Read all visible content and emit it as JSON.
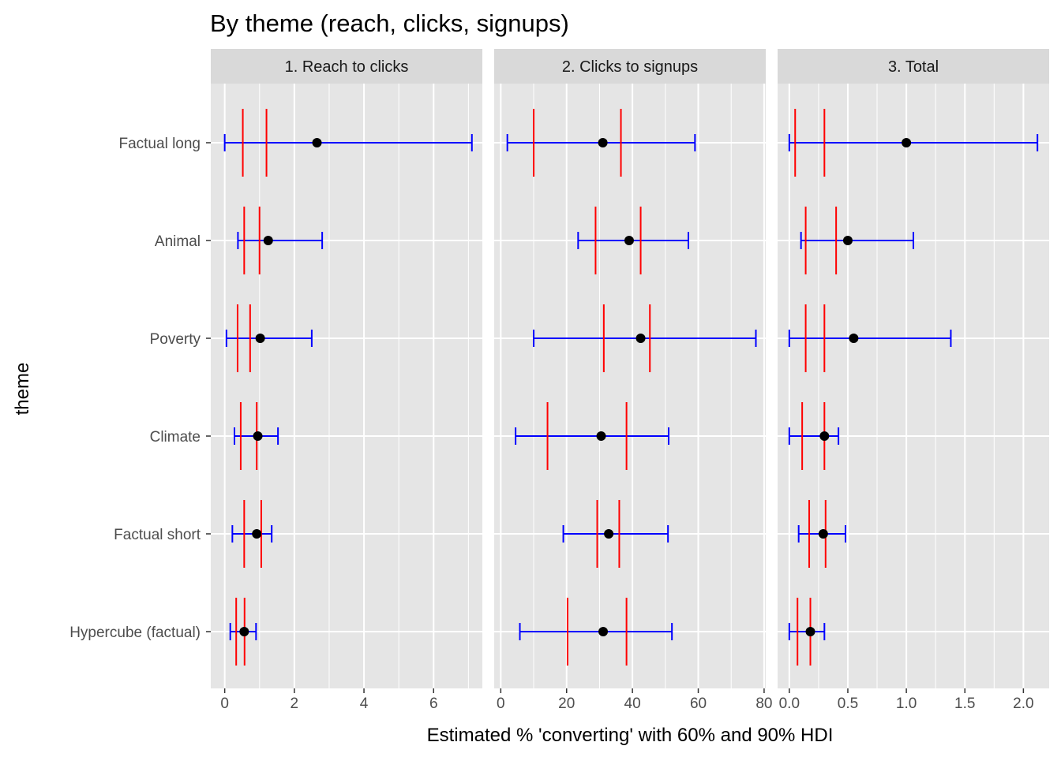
{
  "chart_data": {
    "type": "interval",
    "title": "By theme (reach, clicks, signups)",
    "xlabel": "Estimated % 'converting' with 60% and 90% HDI",
    "ylabel": "theme",
    "categories": [
      "Factual long",
      "Animal",
      "Poverty",
      "Climate",
      "Factual short",
      "Hypercube (factual)"
    ],
    "legend": "none",
    "grid": true,
    "colors": {
      "point": "#000000",
      "hdi_90": "#0000ff",
      "hdi_60": "#ff0000",
      "panel_bg": "#e5e5e5",
      "strip_bg": "#d9d9d9",
      "grid": "#ffffff"
    },
    "panels": [
      {
        "name": "1. Reach to clicks",
        "xlim": [
          -0.4,
          7.4
        ],
        "xticks": [
          0,
          2,
          4,
          6
        ],
        "xtick_labels": [
          "0",
          "2",
          "4",
          "6"
        ],
        "points": [
          {
            "theme": "Factual long",
            "estimate": 2.65,
            "hdi60": [
              0.52,
              1.2
            ],
            "hdi90": [
              0.0,
              7.1
            ]
          },
          {
            "theme": "Animal",
            "estimate": 1.25,
            "hdi60": [
              0.56,
              1.0
            ],
            "hdi90": [
              0.38,
              2.8
            ]
          },
          {
            "theme": "Poverty",
            "estimate": 1.02,
            "hdi60": [
              0.37,
              0.73
            ],
            "hdi90": [
              0.05,
              2.5
            ]
          },
          {
            "theme": "Climate",
            "estimate": 0.95,
            "hdi60": [
              0.46,
              0.92
            ],
            "hdi90": [
              0.28,
              1.53
            ]
          },
          {
            "theme": "Factual short",
            "estimate": 0.92,
            "hdi60": [
              0.56,
              1.05
            ],
            "hdi90": [
              0.22,
              1.35
            ]
          },
          {
            "theme": "Hypercube (factual)",
            "estimate": 0.56,
            "hdi60": [
              0.33,
              0.57
            ],
            "hdi90": [
              0.16,
              0.9
            ]
          }
        ]
      },
      {
        "name": "2. Clicks to signups",
        "xlim": [
          -2,
          80.5
        ],
        "xticks": [
          0,
          20,
          40,
          60,
          80
        ],
        "xtick_labels": [
          "0",
          "20",
          "40",
          "60",
          "80"
        ],
        "points": [
          {
            "theme": "Factual long",
            "estimate": 31,
            "hdi60": [
              10,
              36.5
            ],
            "hdi90": [
              2,
              59
            ]
          },
          {
            "theme": "Animal",
            "estimate": 39,
            "hdi60": [
              28.8,
              42.5
            ],
            "hdi90": [
              23.5,
              57
            ]
          },
          {
            "theme": "Poverty",
            "estimate": 42.5,
            "hdi60": [
              31.3,
              45.3
            ],
            "hdi90": [
              10,
              77.5
            ]
          },
          {
            "theme": "Climate",
            "estimate": 30.5,
            "hdi60": [
              14.2,
              38.2
            ],
            "hdi90": [
              4.5,
              51
            ]
          },
          {
            "theme": "Factual short",
            "estimate": 32.8,
            "hdi60": [
              29.3,
              36
            ],
            "hdi90": [
              19,
              50.8
            ]
          },
          {
            "theme": "Hypercube (factual)",
            "estimate": 31.1,
            "hdi60": [
              20.3,
              38.2
            ],
            "hdi90": [
              5.8,
              52
            ]
          }
        ]
      },
      {
        "name": "3. Total",
        "xlim": [
          -0.1,
          2.22
        ],
        "xticks": [
          0,
          0.5,
          1.0,
          1.5,
          2.0
        ],
        "xtick_labels": [
          "0.0",
          "0.5",
          "1.0",
          "1.5",
          "2.0"
        ],
        "points": [
          {
            "theme": "Factual long",
            "estimate": 1.0,
            "hdi60": [
              0.05,
              0.3
            ],
            "hdi90": [
              0.0,
              2.12
            ]
          },
          {
            "theme": "Animal",
            "estimate": 0.5,
            "hdi60": [
              0.14,
              0.4
            ],
            "hdi90": [
              0.1,
              1.06
            ]
          },
          {
            "theme": "Poverty",
            "estimate": 0.55,
            "hdi60": [
              0.14,
              0.3
            ],
            "hdi90": [
              0.0,
              1.38
            ]
          },
          {
            "theme": "Climate",
            "estimate": 0.3,
            "hdi60": [
              0.11,
              0.3
            ],
            "hdi90": [
              0.0,
              0.42
            ]
          },
          {
            "theme": "Factual short",
            "estimate": 0.29,
            "hdi60": [
              0.17,
              0.31
            ],
            "hdi90": [
              0.08,
              0.48
            ]
          },
          {
            "theme": "Hypercube (factual)",
            "estimate": 0.18,
            "hdi60": [
              0.07,
              0.18
            ],
            "hdi90": [
              0.0,
              0.3
            ]
          }
        ]
      }
    ]
  }
}
